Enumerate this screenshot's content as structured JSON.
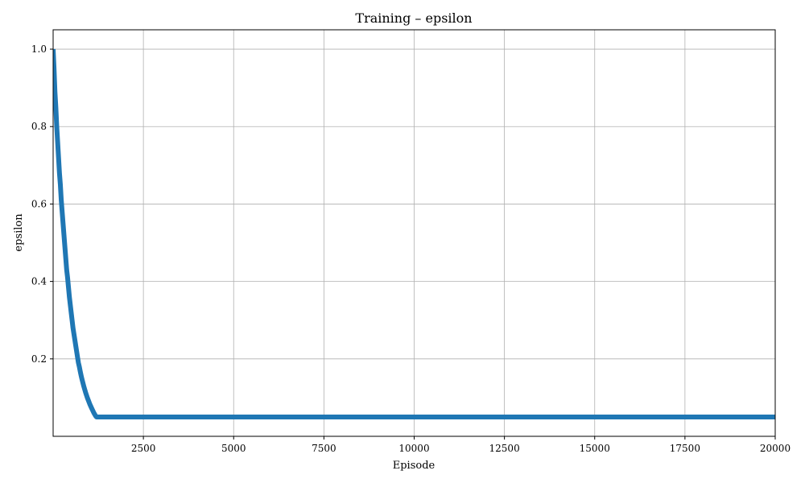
{
  "chart_data": {
    "type": "line",
    "title": "Training – epsilon",
    "xlabel": "Episode",
    "ylabel": "epsilon",
    "xlim": [
      0,
      20000
    ],
    "ylim": [
      0.0,
      1.05
    ],
    "xticks": [
      2500,
      5000,
      7500,
      10000,
      12500,
      15000,
      17500,
      20000
    ],
    "yticks": [
      0.2,
      0.4,
      0.6,
      0.8,
      1.0
    ],
    "grid": true,
    "series": [
      {
        "color": "#1f77b4",
        "x": [
          0,
          25,
          50,
          75,
          100,
          125,
          150,
          175,
          200,
          225,
          250,
          275,
          300,
          325,
          350,
          375,
          400,
          425,
          450,
          475,
          500,
          525,
          550,
          575,
          600,
          625,
          650,
          675,
          700,
          725,
          750,
          775,
          800,
          825,
          850,
          875,
          900,
          925,
          950,
          975,
          1000,
          1025,
          1050,
          1075,
          1100,
          1125,
          1150,
          1175,
          1200,
          1225,
          1250,
          1300,
          2000,
          5000,
          10000,
          15000,
          20000
        ],
        "y": [
          1.0,
          0.95,
          0.89,
          0.85,
          0.8,
          0.76,
          0.72,
          0.68,
          0.65,
          0.61,
          0.58,
          0.55,
          0.52,
          0.49,
          0.46,
          0.43,
          0.41,
          0.385,
          0.36,
          0.34,
          0.32,
          0.3,
          0.28,
          0.265,
          0.25,
          0.235,
          0.22,
          0.205,
          0.19,
          0.18,
          0.168,
          0.157,
          0.147,
          0.138,
          0.129,
          0.121,
          0.113,
          0.106,
          0.099,
          0.093,
          0.087,
          0.081,
          0.076,
          0.071,
          0.066,
          0.061,
          0.057,
          0.053,
          0.05,
          0.05,
          0.05,
          0.05,
          0.05,
          0.05,
          0.05,
          0.05,
          0.05
        ]
      }
    ]
  }
}
